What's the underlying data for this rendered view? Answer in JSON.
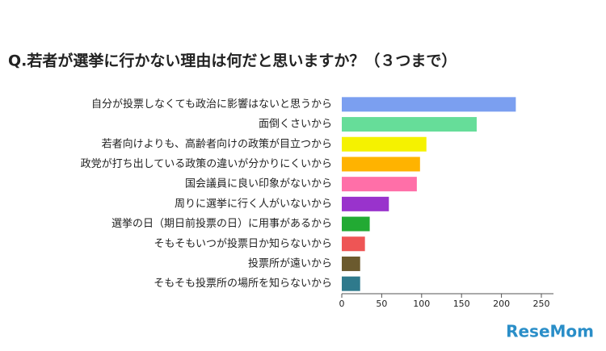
{
  "chart_data": {
    "type": "bar",
    "orientation": "horizontal",
    "title": "Q.若者が選挙に行かない理由は何だと思いますか？（３つまで）",
    "categories": [
      "自分が投票しなくても政治に影響はないと思うから",
      "面倒くさいから",
      "若者向けよりも、高齢者向けの政策が目立つから",
      "政党が打ち出している政策の違いが分かりにくいから",
      "国会議員に良い印象がないから",
      "周りに選挙に行く人がいないから",
      "選挙の日（期日前投票の日）に用事があるから",
      "そもそもいつが投票日か知らないから",
      "投票所が遠いから",
      "そもそも投票所の場所を知らないから"
    ],
    "values": [
      218,
      169,
      106,
      98,
      94,
      59,
      35,
      29,
      23,
      23
    ],
    "colors": [
      "#7b9ff0",
      "#66dd99",
      "#f5f200",
      "#ffb300",
      "#ff6fa8",
      "#9933cc",
      "#22aa33",
      "#ee5555",
      "#6b5a2e",
      "#2f7a8c"
    ],
    "xlim": [
      0,
      250
    ],
    "xticks": [
      0,
      50,
      100,
      150,
      200,
      250
    ],
    "watermark": "ReseMom"
  }
}
